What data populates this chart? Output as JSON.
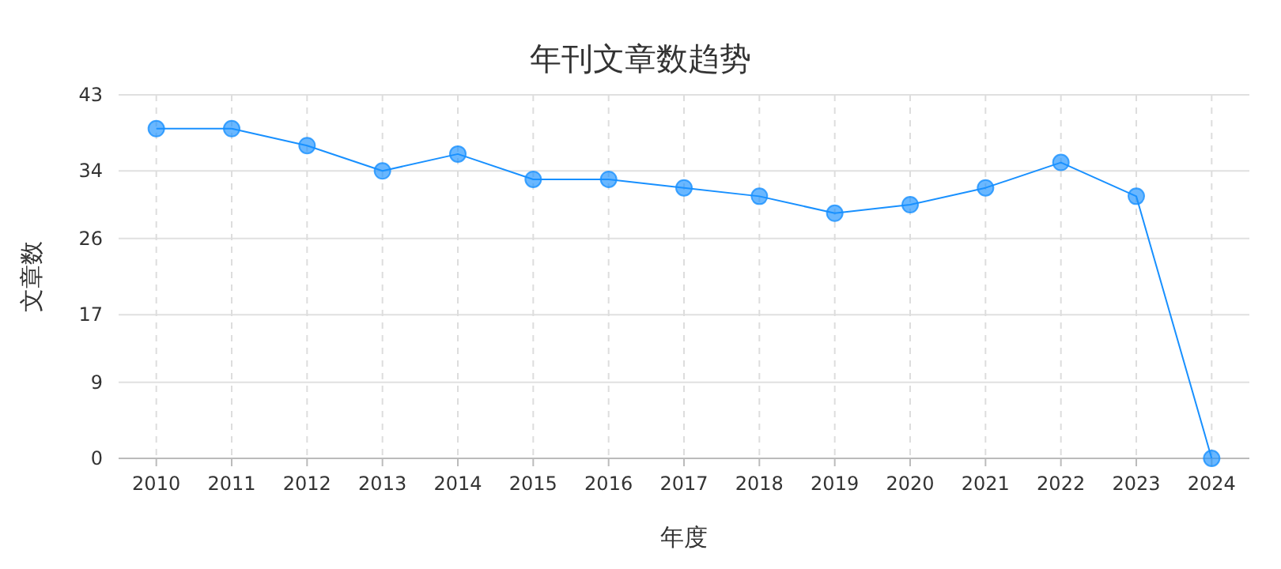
{
  "chart_data": {
    "type": "line",
    "title": "年刊文章数趋势",
    "xlabel": "年度",
    "ylabel": "文章数",
    "categories": [
      "2010",
      "2011",
      "2012",
      "2013",
      "2014",
      "2015",
      "2016",
      "2017",
      "2018",
      "2019",
      "2020",
      "2021",
      "2022",
      "2023",
      "2024"
    ],
    "series": [
      {
        "color": "#1890ff",
        "values": [
          39,
          39,
          37,
          34,
          36,
          33,
          33,
          32,
          31,
          29,
          30,
          32,
          35,
          31,
          0
        ]
      }
    ],
    "ylim": [
      0,
      43
    ],
    "yticks": [
      0,
      9,
      17,
      26,
      34,
      43
    ],
    "grid": true,
    "marker": "circle",
    "line_style": "solid"
  }
}
